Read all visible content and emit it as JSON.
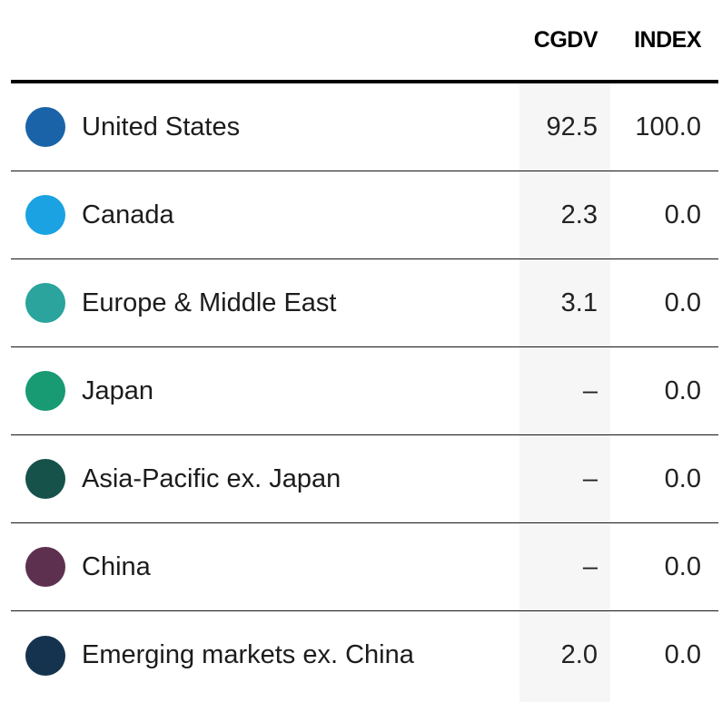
{
  "table": {
    "columns": [
      "CGDV",
      "INDEX"
    ],
    "stripe_color": "#f6f6f6",
    "rows": [
      {
        "label": "United States",
        "color": "#1a63a8",
        "cgdv": "92.5",
        "index": "100.0"
      },
      {
        "label": "Canada",
        "color": "#1ba2e2",
        "cgdv": "2.3",
        "index": "0.0"
      },
      {
        "label": "Europe & Middle East",
        "color": "#2aa49c",
        "cgdv": "3.1",
        "index": "0.0"
      },
      {
        "label": "Japan",
        "color": "#189a73",
        "cgdv": "–",
        "index": "0.0"
      },
      {
        "label": "Asia-Pacific ex. Japan",
        "color": "#16514a",
        "cgdv": "–",
        "index": "0.0"
      },
      {
        "label": "China",
        "color": "#5d3050",
        "cgdv": "–",
        "index": "0.0"
      },
      {
        "label": "Emerging markets ex. China",
        "color": "#15334f",
        "cgdv": "2.0",
        "index": "0.0"
      }
    ]
  },
  "chart_data": {
    "type": "table",
    "columns": [
      "CGDV",
      "INDEX"
    ],
    "categories": [
      "United States",
      "Canada",
      "Europe & Middle East",
      "Japan",
      "Asia-Pacific ex. Japan",
      "China",
      "Emerging markets ex. China"
    ],
    "series": [
      {
        "name": "CGDV",
        "values": [
          92.5,
          2.3,
          3.1,
          null,
          null,
          null,
          2.0
        ]
      },
      {
        "name": "INDEX",
        "values": [
          100.0,
          0.0,
          0.0,
          0.0,
          0.0,
          0.0,
          0.0
        ]
      }
    ],
    "missing_value_display": "–",
    "row_colors": [
      "#1a63a8",
      "#1ba2e2",
      "#2aa49c",
      "#189a73",
      "#16514a",
      "#5d3050",
      "#15334f"
    ],
    "legend_position": "left-dots",
    "grid": "horizontal-rules"
  }
}
